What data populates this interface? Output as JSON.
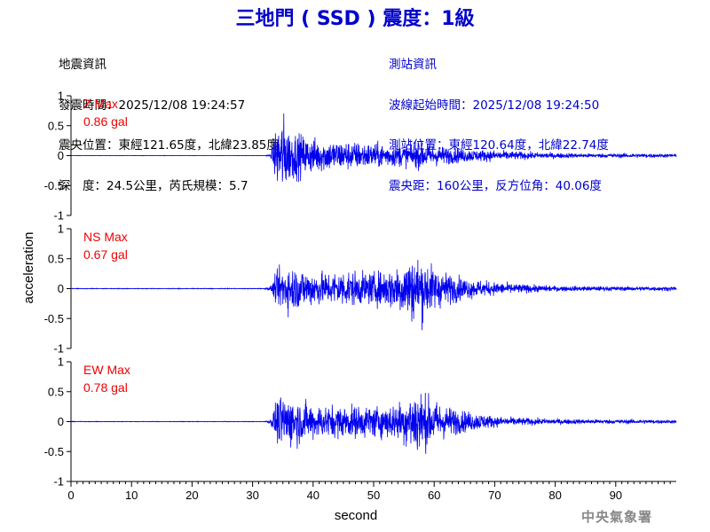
{
  "title": "三地門 ( SSD ) 震度：1級",
  "event_info": {
    "heading": "地震資訊",
    "origin_time": "發震時間：2025/12/08 19:24:57",
    "epicenter": "震央位置：東經121.65度，北緯23.85度",
    "depth_magnitude": "深　度：24.5公里，芮氏規模：5.7"
  },
  "station_info": {
    "heading": "測站資訊",
    "wave_start": "波線起始時間：2025/12/08 19:24:50",
    "station_location": "測站位置：東經120.64度，北緯22.74度",
    "distance_azimuth": "震央距：160公里，反方位角：40.06度"
  },
  "credit": "中央氣象署",
  "colors": {
    "title": "#0000cc",
    "trace": "#0000ee",
    "max_label": "#ee0000",
    "axis": "#000000",
    "credit": "#888888"
  },
  "chart_data": {
    "type": "line",
    "xlabel": "second",
    "ylabel": "acceleration",
    "xlim": [
      0,
      100
    ],
    "xticks": [
      0,
      10,
      20,
      30,
      40,
      50,
      60,
      70,
      80,
      90
    ],
    "ylim": [
      -1,
      1
    ],
    "yticks": [
      1,
      0.5,
      0,
      -0.5,
      -1
    ],
    "grid": false,
    "panels": [
      {
        "component": "Z",
        "max_label": "Z Max",
        "max_value": "0.86 gal",
        "envelope": [
          [
            0,
            0.003
          ],
          [
            32,
            0.003
          ],
          [
            33,
            0.03
          ],
          [
            34,
            0.6
          ],
          [
            35,
            0.8
          ],
          [
            36,
            0.5
          ],
          [
            37,
            0.45
          ],
          [
            39,
            0.35
          ],
          [
            42,
            0.3
          ],
          [
            45,
            0.28
          ],
          [
            48,
            0.25
          ],
          [
            52,
            0.22
          ],
          [
            55,
            0.2
          ],
          [
            58,
            0.25
          ],
          [
            60,
            0.2
          ],
          [
            63,
            0.15
          ],
          [
            66,
            0.12
          ],
          [
            70,
            0.1
          ],
          [
            75,
            0.07
          ],
          [
            80,
            0.05
          ],
          [
            85,
            0.04
          ],
          [
            90,
            0.04
          ],
          [
            95,
            0.04
          ],
          [
            100,
            0.03
          ]
        ]
      },
      {
        "component": "NS",
        "max_label": "NS Max",
        "max_value": "0.67 gal",
        "envelope": [
          [
            0,
            0.006
          ],
          [
            32,
            0.006
          ],
          [
            33,
            0.05
          ],
          [
            34,
            0.3
          ],
          [
            35,
            0.45
          ],
          [
            37,
            0.4
          ],
          [
            39,
            0.35
          ],
          [
            42,
            0.3
          ],
          [
            45,
            0.35
          ],
          [
            48,
            0.3
          ],
          [
            50,
            0.3
          ],
          [
            52,
            0.35
          ],
          [
            54,
            0.45
          ],
          [
            56,
            0.6
          ],
          [
            58,
            0.6
          ],
          [
            60,
            0.4
          ],
          [
            62,
            0.3
          ],
          [
            65,
            0.2
          ],
          [
            68,
            0.15
          ],
          [
            70,
            0.12
          ],
          [
            75,
            0.08
          ],
          [
            80,
            0.05
          ],
          [
            90,
            0.04
          ],
          [
            95,
            0.04
          ],
          [
            100,
            0.04
          ]
        ]
      },
      {
        "component": "EW",
        "max_label": "EW Max",
        "max_value": "0.78 gal",
        "envelope": [
          [
            0,
            0.005
          ],
          [
            32,
            0.005
          ],
          [
            33,
            0.05
          ],
          [
            34,
            0.4
          ],
          [
            35,
            0.5
          ],
          [
            37,
            0.45
          ],
          [
            39,
            0.35
          ],
          [
            42,
            0.3
          ],
          [
            45,
            0.3
          ],
          [
            48,
            0.3
          ],
          [
            52,
            0.3
          ],
          [
            55,
            0.4
          ],
          [
            57,
            0.7
          ],
          [
            58,
            0.55
          ],
          [
            60,
            0.4
          ],
          [
            62,
            0.3
          ],
          [
            65,
            0.2
          ],
          [
            68,
            0.15
          ],
          [
            70,
            0.1
          ],
          [
            75,
            0.07
          ],
          [
            80,
            0.05
          ],
          [
            90,
            0.04
          ],
          [
            95,
            0.04
          ],
          [
            100,
            0.03
          ]
        ]
      }
    ]
  }
}
